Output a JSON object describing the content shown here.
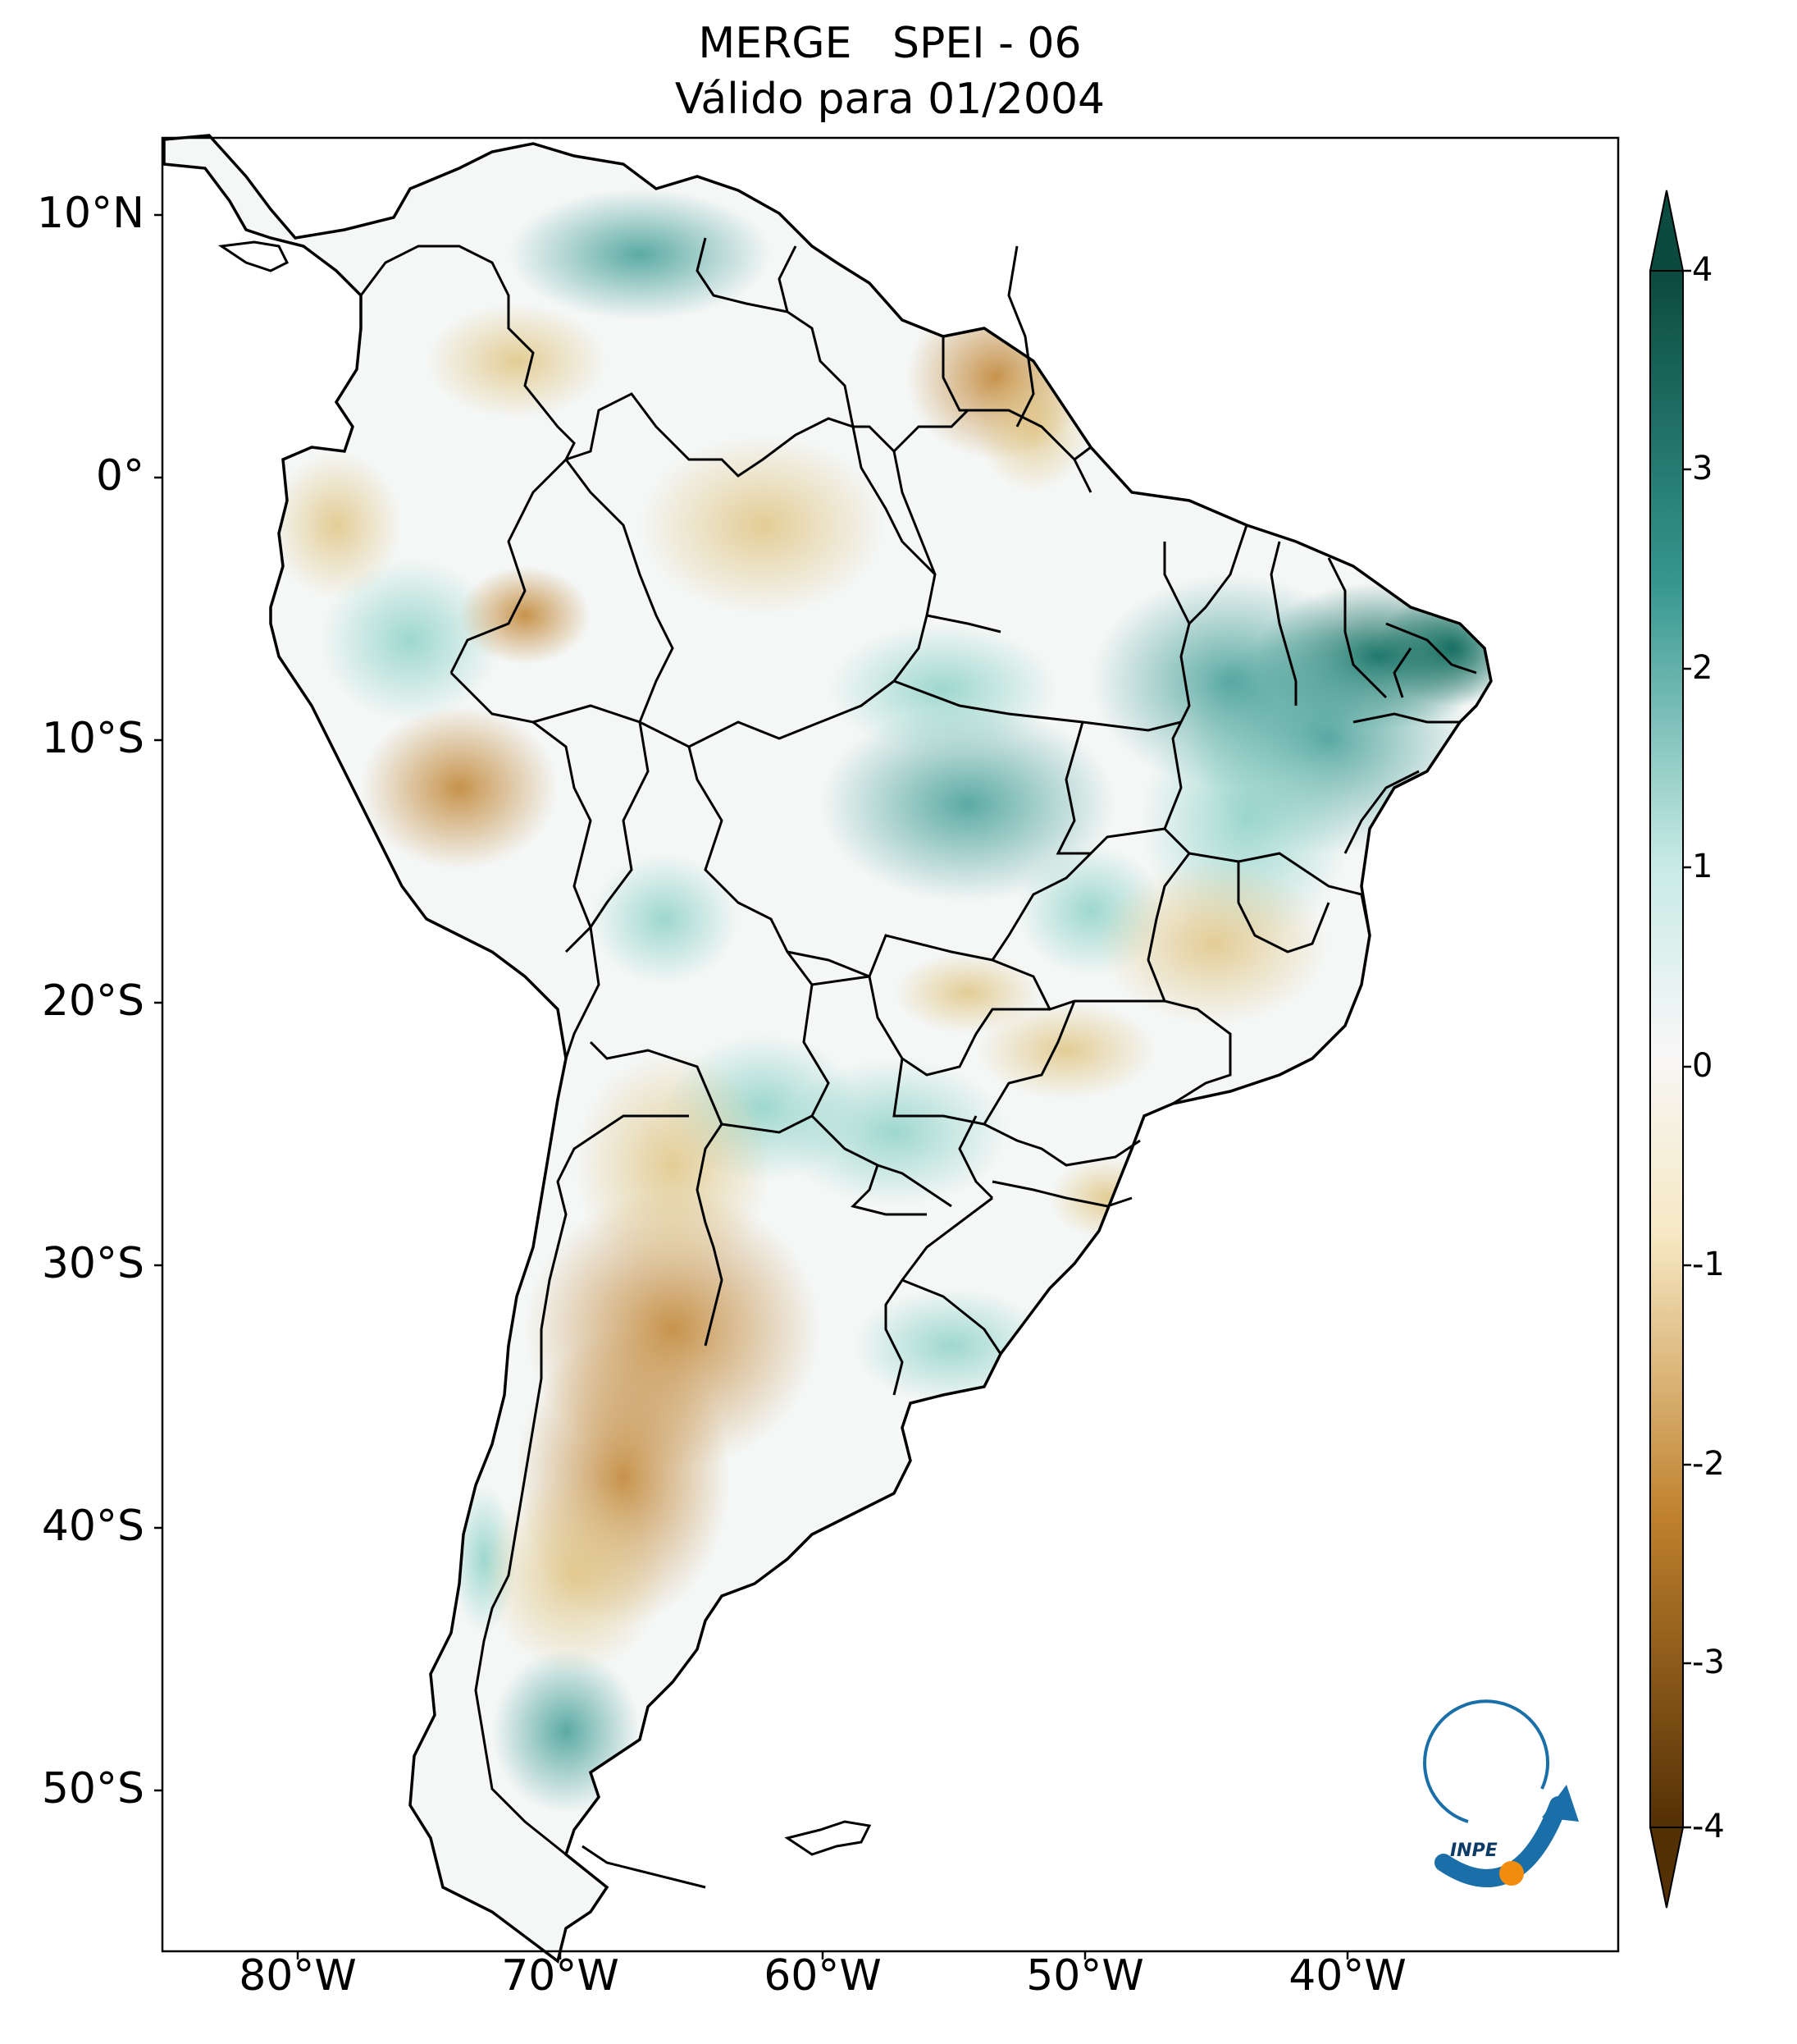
{
  "title": {
    "line1": "MERGE   SPEI - 06",
    "line2": "Válido para 01/2004"
  },
  "axes": {
    "lat_labels": [
      "10°N",
      "0°",
      "10°S",
      "20°S",
      "30°S",
      "40°S",
      "50°S"
    ],
    "lon_labels": [
      "80°W",
      "70°W",
      "60°W",
      "50°W",
      "40°W"
    ]
  },
  "colorbar": {
    "labels": [
      "4",
      "3",
      "2",
      "1",
      "0",
      "-1",
      "-2",
      "-3",
      "-4"
    ],
    "colors": {
      "dark_green": "#0b4a3e",
      "green": "#35978f",
      "light_green": "#c7eae5",
      "white": "#f5f5f5",
      "light_brown": "#f6e8c3",
      "brown": "#bf812d",
      "dark_brown": "#543005"
    }
  },
  "logo": {
    "text": "INPE"
  }
}
